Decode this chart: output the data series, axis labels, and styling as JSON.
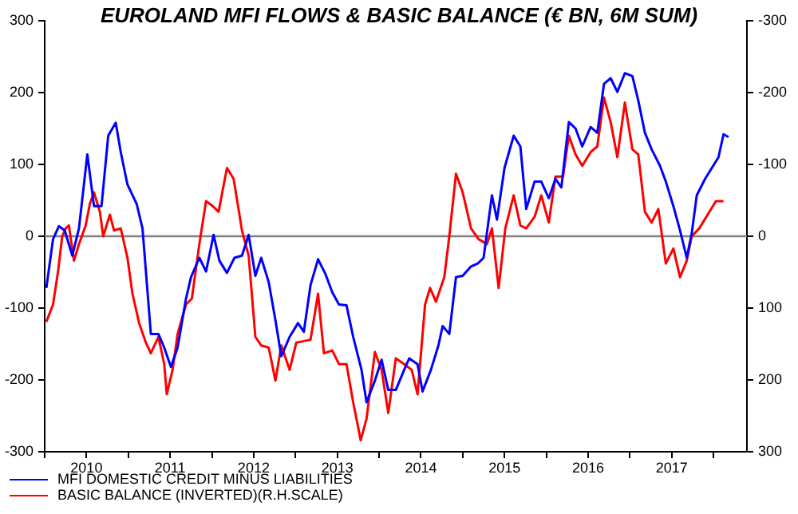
{
  "chart_data": {
    "type": "line",
    "title": "EUROLAND MFI FLOWS & BASIC BALANCE (€ BN, 6M SUM)",
    "xlim": [
      2010,
      2018.4
    ],
    "xticks": [
      {
        "value": 2010,
        "label": null
      },
      {
        "value": 2010.5,
        "label": "2010"
      },
      {
        "value": 2011,
        "label": null
      },
      {
        "value": 2011.5,
        "label": "2011"
      },
      {
        "value": 2012,
        "label": null
      },
      {
        "value": 2012.5,
        "label": "2012"
      },
      {
        "value": 2013,
        "label": null
      },
      {
        "value": 2013.5,
        "label": "2013"
      },
      {
        "value": 2014,
        "label": null
      },
      {
        "value": 2014.5,
        "label": "2014"
      },
      {
        "value": 2015,
        "label": null
      },
      {
        "value": 2015.5,
        "label": "2015"
      },
      {
        "value": 2016,
        "label": null
      },
      {
        "value": 2016.5,
        "label": "2016"
      },
      {
        "value": 2017,
        "label": null
      },
      {
        "value": 2017.5,
        "label": "2017"
      },
      {
        "value": 2018,
        "label": null
      }
    ],
    "ylim": [
      -300,
      300
    ],
    "yticks": [
      -300,
      -200,
      -100,
      0,
      100,
      200,
      300
    ],
    "y2lim": [
      300,
      -300
    ],
    "y2ticks": [
      -300,
      -200,
      -100,
      0,
      100,
      200,
      300
    ],
    "legend": "bottom left",
    "grid": false,
    "marker": "none",
    "ref_lines": [
      {
        "axis": "y",
        "value": 0,
        "label": null,
        "color": "#808080"
      }
    ],
    "series": [
      {
        "name": "MFI DOMESTIC CREDIT MINUS LIABILITIES",
        "color": "#0000ff",
        "x": [
          2010.02,
          2010.1,
          2010.17,
          2010.24,
          2010.33,
          2010.41,
          2010.51,
          2010.59,
          2010.68,
          2010.76,
          2010.85,
          2010.91,
          2010.99,
          2011.1,
          2011.17,
          2011.27,
          2011.36,
          2011.43,
          2011.51,
          2011.59,
          2011.69,
          2011.75,
          2011.85,
          2011.93,
          2012.02,
          2012.09,
          2012.18,
          2012.27,
          2012.36,
          2012.44,
          2012.52,
          2012.59,
          2012.68,
          2012.76,
          2012.83,
          2012.93,
          2013.03,
          2013.1,
          2013.18,
          2013.27,
          2013.36,
          2013.44,
          2013.52,
          2013.61,
          2013.69,
          2013.79,
          2013.85,
          2013.95,
          2014.03,
          2014.11,
          2014.2,
          2014.3,
          2014.36,
          2014.46,
          2014.52,
          2014.62,
          2014.71,
          2014.76,
          2014.84,
          2014.92,
          2015.0,
          2015.1,
          2015.18,
          2015.25,
          2015.35,
          2015.41,
          2015.5,
          2015.61,
          2015.69,
          2015.76,
          2015.86,
          2015.94,
          2016.03,
          2016.11,
          2016.18,
          2016.27,
          2016.35,
          2016.43,
          2016.53,
          2016.61,
          2016.69,
          2016.77,
          2016.85,
          2016.94,
          2017.03,
          2017.1,
          2017.18,
          2017.26,
          2017.36,
          2017.43,
          2017.52,
          2017.6,
          2017.68,
          2017.74,
          2017.8,
          2017.9,
          2017.98,
          2018.06,
          2018.12,
          2018.18
        ],
        "values": [
          -72,
          -4,
          14,
          8,
          -27,
          11,
          114,
          42,
          42,
          140,
          158,
          117,
          72,
          45,
          11,
          -136,
          -136,
          -155,
          -182,
          -155,
          -87,
          -57,
          -30,
          -49,
          2,
          -34,
          -51,
          -30,
          -27,
          2,
          -55,
          -30,
          -64,
          -117,
          -167,
          -140,
          -121,
          -133,
          -68,
          -32,
          -53,
          -78,
          -95,
          -96,
          -140,
          -186,
          -231,
          -201,
          -172,
          -214,
          -214,
          -186,
          -170,
          -178,
          -216,
          -186,
          -152,
          -125,
          -136,
          -57,
          -55,
          -42,
          -38,
          -30,
          57,
          23,
          95,
          140,
          125,
          38,
          76,
          76,
          53,
          80,
          68,
          159,
          150,
          125,
          152,
          144,
          212,
          220,
          201,
          227,
          223,
          189,
          144,
          121,
          98,
          76,
          42,
          8,
          -30,
          4,
          57,
          80,
          95,
          110,
          142,
          138
        ]
      },
      {
        "name": "BASIC BALANCE (INVERTED)(R.H.SCALE)",
        "color": "#ff0000",
        "axis": "y2",
        "x": [
          2010.02,
          2010.1,
          2010.16,
          2010.21,
          2010.25,
          2010.29,
          2010.35,
          2010.41,
          2010.49,
          2010.54,
          2010.59,
          2010.66,
          2010.7,
          2010.78,
          2010.83,
          2010.91,
          2010.99,
          2011.05,
          2011.13,
          2011.21,
          2011.27,
          2011.36,
          2011.43,
          2011.46,
          2011.53,
          2011.59,
          2011.69,
          2011.76,
          2011.85,
          2011.93,
          2012.01,
          2012.08,
          2012.18,
          2012.26,
          2012.36,
          2012.44,
          2012.52,
          2012.59,
          2012.68,
          2012.76,
          2012.83,
          2012.93,
          2013.01,
          2013.1,
          2013.18,
          2013.27,
          2013.34,
          2013.44,
          2013.52,
          2013.61,
          2013.69,
          2013.78,
          2013.85,
          2013.95,
          2014.03,
          2014.11,
          2014.2,
          2014.3,
          2014.39,
          2014.46,
          2014.55,
          2014.61,
          2014.68,
          2014.78,
          2014.84,
          2014.92,
          2015.0,
          2015.1,
          2015.19,
          2015.29,
          2015.35,
          2015.43,
          2015.51,
          2015.61,
          2015.69,
          2015.76,
          2015.86,
          2015.94,
          2016.03,
          2016.11,
          2016.2,
          2016.27,
          2016.35,
          2016.43,
          2016.53,
          2016.61,
          2016.69,
          2016.77,
          2016.85,
          2016.94,
          2017.03,
          2017.1,
          2017.18,
          2017.26,
          2017.34,
          2017.43,
          2017.52,
          2017.6,
          2017.68,
          2017.74,
          2017.83,
          2017.93,
          2018.03,
          2018.12
        ],
        "values": [
          119,
          95,
          49,
          0,
          -11,
          -15,
          34,
          11,
          -15,
          -45,
          -61,
          -34,
          0,
          -30,
          -8,
          -11,
          30,
          80,
          121,
          148,
          163,
          140,
          178,
          220,
          186,
          136,
          95,
          87,
          11,
          -49,
          -42,
          -34,
          -95,
          -80,
          -8,
          27,
          140,
          152,
          155,
          201,
          152,
          186,
          148,
          146,
          144,
          80,
          163,
          159,
          178,
          178,
          231,
          284,
          254,
          161,
          186,
          246,
          170,
          178,
          186,
          220,
          95,
          72,
          91,
          57,
          0,
          -87,
          -61,
          -11,
          4,
          11,
          -11,
          72,
          -11,
          -57,
          -15,
          -11,
          -27,
          -57,
          -19,
          -83,
          -83,
          -140,
          -114,
          -98,
          -117,
          -125,
          -193,
          -159,
          -110,
          -186,
          -121,
          -114,
          -34,
          -19,
          -38,
          38,
          17,
          57,
          34,
          0,
          -11,
          -30,
          -49,
          -49
        ]
      }
    ]
  }
}
